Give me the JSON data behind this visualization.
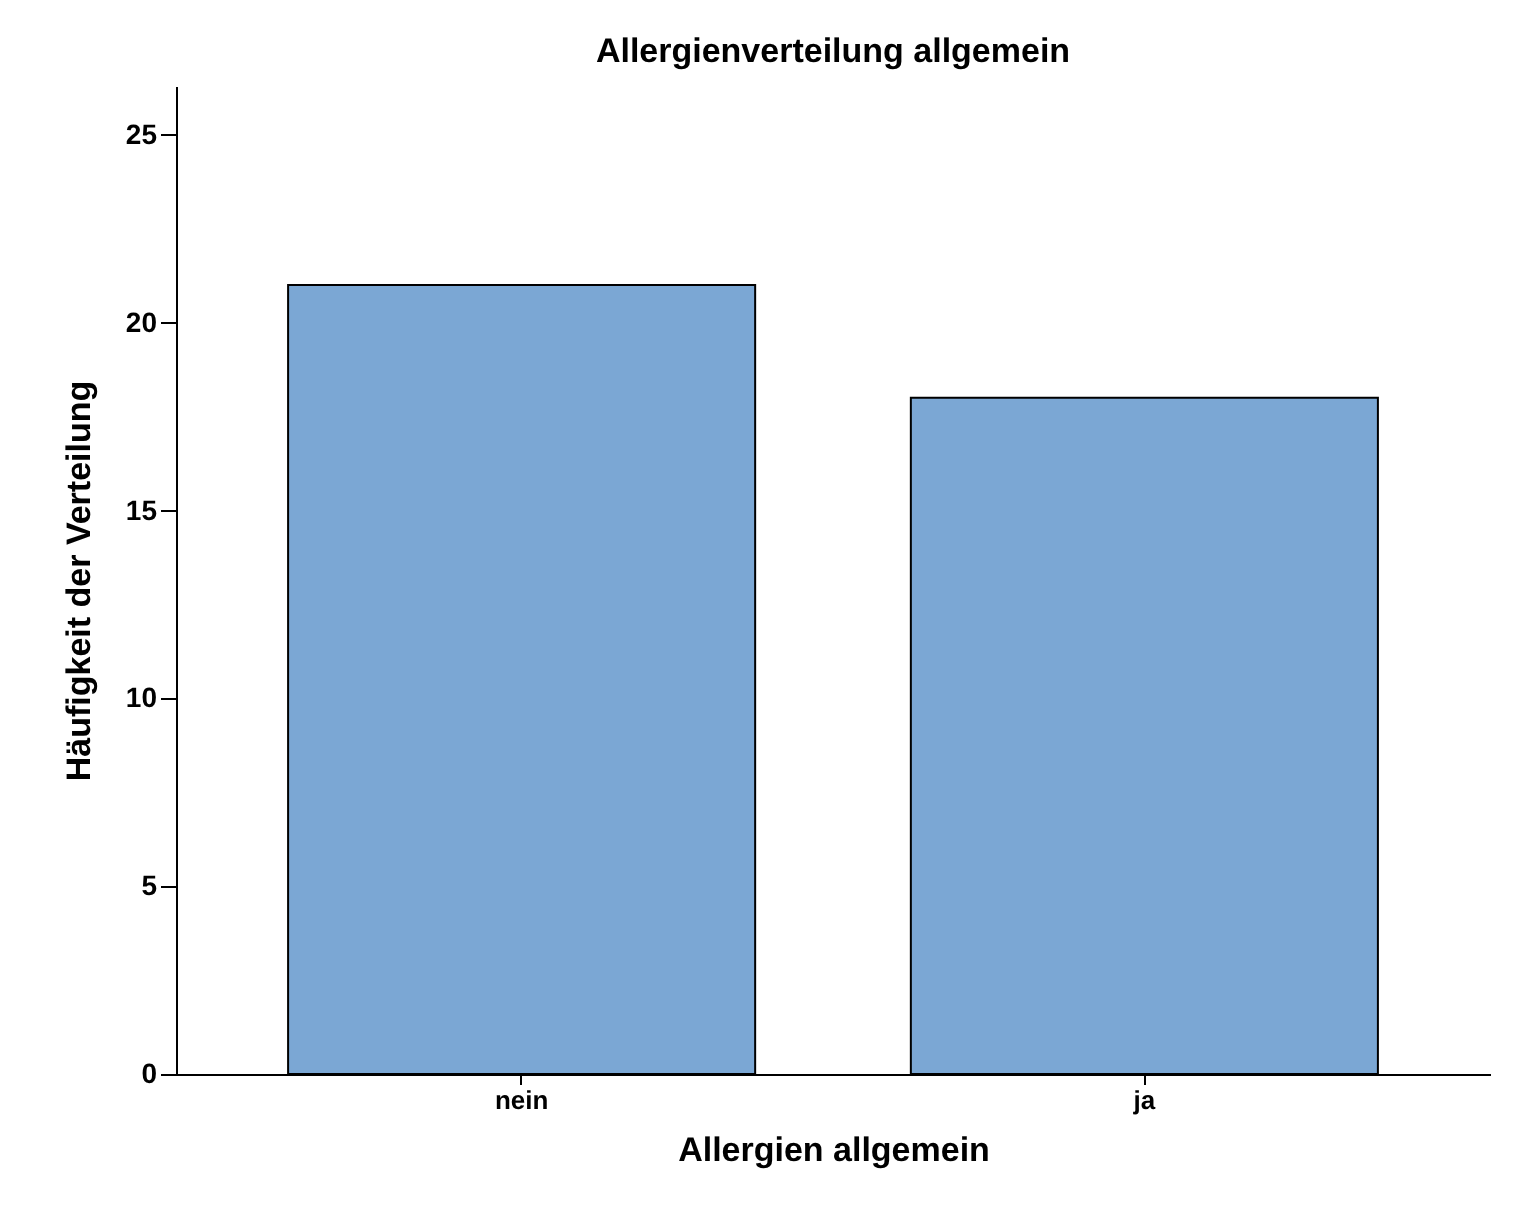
{
  "chart_data": {
    "type": "bar",
    "title": "Allergienverteilung allgemein",
    "xlabel": "Allergien allgemein",
    "ylabel": "Häufigkeit der Verteilung",
    "categories": [
      "nein",
      "ja"
    ],
    "values": [
      21,
      18
    ],
    "color": "#7ba7d4",
    "ylim": [
      0,
      26.3
    ],
    "yticks": [
      0,
      5,
      10,
      15,
      20,
      25
    ],
    "grid": false
  }
}
